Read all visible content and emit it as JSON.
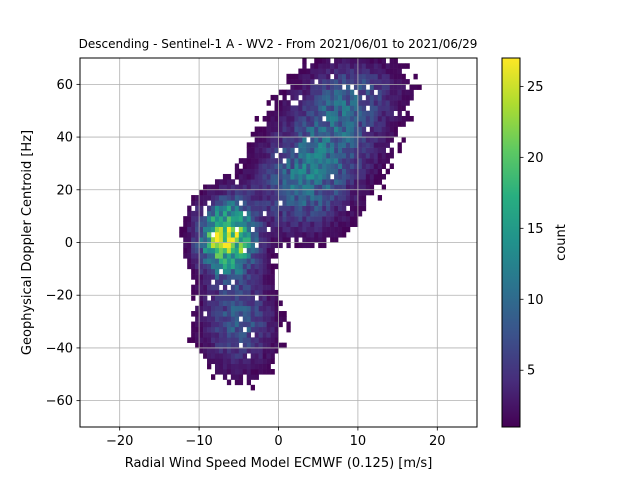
{
  "chart_data": {
    "type": "heatmap",
    "title": "Descending - Sentinel-1 A - WV2 - From 2021/06/01 to 2021/06/29",
    "xlabel": "Radial Wind Speed Model ECMWF (0.125) [m/s]",
    "ylabel": "Geophysical Doppler Centroid [Hz]",
    "xlim": [
      -25,
      25
    ],
    "ylim": [
      -70,
      70
    ],
    "xticks": [
      -20,
      -10,
      0,
      10,
      20
    ],
    "yticks": [
      -60,
      -40,
      -20,
      0,
      20,
      40,
      60
    ],
    "grid": true,
    "colormap": "viridis",
    "colorbar": {
      "label": "count",
      "vmin": 1,
      "vmax": 27,
      "ticks": [
        5,
        10,
        15,
        20,
        25
      ]
    },
    "bin_width_x": 0.5,
    "bin_height_y": 2,
    "density_components": [
      {
        "center_x": -6.5,
        "center_y": 2,
        "sigma_x": 2.3,
        "sigma_y": 9,
        "peak_count": 25
      },
      {
        "center_x": -5,
        "center_y": -30,
        "sigma_x": 3,
        "sigma_y": 12,
        "peak_count": 8
      },
      {
        "center_x": 3,
        "center_y": 22,
        "sigma_x": 4,
        "sigma_y": 12,
        "peak_count": 9
      },
      {
        "center_x": 7,
        "center_y": 42,
        "sigma_x": 4,
        "sigma_y": 12,
        "peak_count": 8
      },
      {
        "center_x": 10,
        "center_y": 58,
        "sigma_x": 4,
        "sigma_y": 8,
        "peak_count": 5
      }
    ]
  }
}
